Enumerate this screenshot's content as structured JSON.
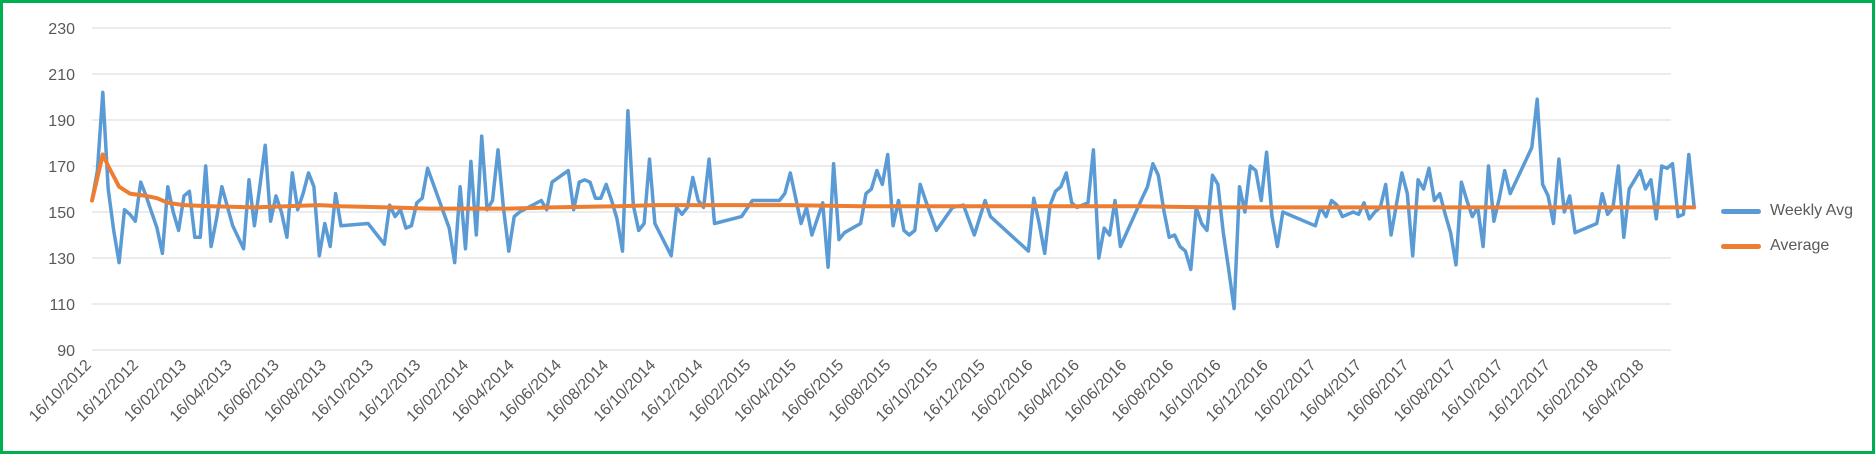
{
  "chart_data": {
    "type": "line",
    "title": "",
    "xlabel": "",
    "ylabel": "",
    "ylim": [
      90,
      230
    ],
    "y_ticks": [
      90,
      110,
      130,
      150,
      170,
      190,
      210,
      230
    ],
    "x_range": [
      "2012-10-16",
      "2018-05-20"
    ],
    "x_tick_labels": [
      "16/10/2012",
      "16/12/2012",
      "16/02/2013",
      "16/04/2013",
      "16/06/2013",
      "16/08/2013",
      "16/10/2013",
      "16/12/2013",
      "16/02/2014",
      "16/04/2014",
      "16/06/2014",
      "16/08/2014",
      "16/10/2014",
      "16/12/2014",
      "16/02/2015",
      "16/04/2015",
      "16/06/2015",
      "16/08/2015",
      "16/10/2015",
      "16/12/2015",
      "16/02/2016",
      "16/04/2016",
      "16/06/2016",
      "16/08/2016",
      "16/10/2016",
      "16/12/2016",
      "16/02/2017",
      "16/04/2017",
      "16/06/2017",
      "16/08/2017",
      "16/10/2017",
      "16/12/2017",
      "16/02/2018",
      "16/04/2018"
    ],
    "grid": true,
    "legend_position": "right",
    "series": [
      {
        "name": "Weekly Avg",
        "color": "#5b9bd5",
        "points": [
          [
            "2012-10-16",
            155
          ],
          [
            "2012-10-23",
            168
          ],
          [
            "2012-10-30",
            202
          ],
          [
            "2012-11-06",
            160
          ],
          [
            "2012-11-13",
            142
          ],
          [
            "2012-11-20",
            128
          ],
          [
            "2012-11-27",
            151
          ],
          [
            "2012-12-04",
            149
          ],
          [
            "2012-12-11",
            146
          ],
          [
            "2012-12-18",
            163
          ],
          [
            "2012-12-25",
            157
          ],
          [
            "2013-01-01",
            150
          ],
          [
            "2013-01-08",
            143
          ],
          [
            "2013-01-15",
            132
          ],
          [
            "2013-01-22",
            161
          ],
          [
            "2013-01-29",
            150
          ],
          [
            "2013-02-05",
            142
          ],
          [
            "2013-02-12",
            157
          ],
          [
            "2013-02-19",
            159
          ],
          [
            "2013-02-26",
            139
          ],
          [
            "2013-03-05",
            139
          ],
          [
            "2013-03-12",
            170
          ],
          [
            "2013-03-19",
            135
          ],
          [
            "2013-03-26",
            147
          ],
          [
            "2013-04-02",
            161
          ],
          [
            "2013-04-16",
            144
          ],
          [
            "2013-04-30",
            134
          ],
          [
            "2013-05-07",
            164
          ],
          [
            "2013-05-14",
            144
          ],
          [
            "2013-05-21",
            161
          ],
          [
            "2013-05-28",
            179
          ],
          [
            "2013-06-04",
            146
          ],
          [
            "2013-06-11",
            157
          ],
          [
            "2013-06-18",
            150
          ],
          [
            "2013-06-25",
            139
          ],
          [
            "2013-07-02",
            167
          ],
          [
            "2013-07-09",
            151
          ],
          [
            "2013-07-16",
            158
          ],
          [
            "2013-07-23",
            167
          ],
          [
            "2013-07-30",
            161
          ],
          [
            "2013-08-06",
            131
          ],
          [
            "2013-08-13",
            145
          ],
          [
            "2013-08-20",
            135
          ],
          [
            "2013-08-27",
            158
          ],
          [
            "2013-09-03",
            144
          ],
          [
            "2013-10-08",
            145
          ],
          [
            "2013-10-29",
            136
          ],
          [
            "2013-11-05",
            153
          ],
          [
            "2013-11-12",
            148
          ],
          [
            "2013-11-19",
            151
          ],
          [
            "2013-11-26",
            143
          ],
          [
            "2013-12-03",
            144
          ],
          [
            "2013-12-10",
            154
          ],
          [
            "2013-12-17",
            156
          ],
          [
            "2013-12-24",
            169
          ],
          [
            "2014-01-21",
            143
          ],
          [
            "2014-01-28",
            128
          ],
          [
            "2014-02-04",
            161
          ],
          [
            "2014-02-11",
            134
          ],
          [
            "2014-02-18",
            172
          ],
          [
            "2014-02-25",
            140
          ],
          [
            "2014-03-04",
            183
          ],
          [
            "2014-03-11",
            151
          ],
          [
            "2014-03-18",
            155
          ],
          [
            "2014-03-25",
            177
          ],
          [
            "2014-04-01",
            152
          ],
          [
            "2014-04-08",
            133
          ],
          [
            "2014-04-15",
            148
          ],
          [
            "2014-04-22",
            150
          ],
          [
            "2014-05-20",
            155
          ],
          [
            "2014-05-27",
            151
          ],
          [
            "2014-06-03",
            163
          ],
          [
            "2014-06-24",
            168
          ],
          [
            "2014-07-01",
            151
          ],
          [
            "2014-07-08",
            163
          ],
          [
            "2014-07-15",
            164
          ],
          [
            "2014-07-22",
            163
          ],
          [
            "2014-07-29",
            156
          ],
          [
            "2014-08-05",
            156
          ],
          [
            "2014-08-12",
            162
          ],
          [
            "2014-08-19",
            155
          ],
          [
            "2014-08-26",
            147
          ],
          [
            "2014-09-02",
            133
          ],
          [
            "2014-09-09",
            194
          ],
          [
            "2014-09-16",
            153
          ],
          [
            "2014-09-23",
            142
          ],
          [
            "2014-09-30",
            145
          ],
          [
            "2014-10-07",
            173
          ],
          [
            "2014-10-14",
            145
          ],
          [
            "2014-11-04",
            131
          ],
          [
            "2014-11-11",
            152
          ],
          [
            "2014-11-18",
            149
          ],
          [
            "2014-11-25",
            152
          ],
          [
            "2014-12-02",
            165
          ],
          [
            "2014-12-09",
            155
          ],
          [
            "2014-12-16",
            152
          ],
          [
            "2014-12-23",
            173
          ],
          [
            "2014-12-30",
            145
          ],
          [
            "2015-02-03",
            148
          ],
          [
            "2015-02-17",
            155
          ],
          [
            "2015-03-24",
            155
          ],
          [
            "2015-03-31",
            158
          ],
          [
            "2015-04-07",
            167
          ],
          [
            "2015-04-21",
            145
          ],
          [
            "2015-04-28",
            152
          ],
          [
            "2015-05-05",
            140
          ],
          [
            "2015-05-19",
            154
          ],
          [
            "2015-05-26",
            126
          ],
          [
            "2015-06-02",
            171
          ],
          [
            "2015-06-09",
            138
          ],
          [
            "2015-06-16",
            141
          ],
          [
            "2015-07-07",
            145
          ],
          [
            "2015-07-14",
            158
          ],
          [
            "2015-07-21",
            160
          ],
          [
            "2015-07-28",
            168
          ],
          [
            "2015-08-04",
            162
          ],
          [
            "2015-08-11",
            175
          ],
          [
            "2015-08-18",
            144
          ],
          [
            "2015-08-25",
            155
          ],
          [
            "2015-09-01",
            142
          ],
          [
            "2015-09-08",
            140
          ],
          [
            "2015-09-15",
            142
          ],
          [
            "2015-09-22",
            162
          ],
          [
            "2015-09-29",
            155
          ],
          [
            "2015-10-13",
            142
          ],
          [
            "2015-11-03",
            152
          ],
          [
            "2015-11-17",
            153
          ],
          [
            "2015-12-01",
            140
          ],
          [
            "2015-12-15",
            155
          ],
          [
            "2015-12-22",
            148
          ],
          [
            "2016-02-09",
            133
          ],
          [
            "2016-02-16",
            156
          ],
          [
            "2016-02-23",
            145
          ],
          [
            "2016-03-01",
            132
          ],
          [
            "2016-03-08",
            153
          ],
          [
            "2016-03-15",
            159
          ],
          [
            "2016-03-22",
            161
          ],
          [
            "2016-03-29",
            167
          ],
          [
            "2016-04-05",
            154
          ],
          [
            "2016-04-12",
            152
          ],
          [
            "2016-04-26",
            154
          ],
          [
            "2016-05-03",
            177
          ],
          [
            "2016-05-10",
            130
          ],
          [
            "2016-05-17",
            143
          ],
          [
            "2016-05-24",
            140
          ],
          [
            "2016-05-31",
            155
          ],
          [
            "2016-06-07",
            135
          ],
          [
            "2016-07-05",
            156
          ],
          [
            "2016-07-12",
            161
          ],
          [
            "2016-07-19",
            171
          ],
          [
            "2016-07-26",
            166
          ],
          [
            "2016-08-02",
            151
          ],
          [
            "2016-08-09",
            139
          ],
          [
            "2016-08-16",
            140
          ],
          [
            "2016-08-23",
            135
          ],
          [
            "2016-08-30",
            133
          ],
          [
            "2016-09-06",
            125
          ],
          [
            "2016-09-13",
            152
          ],
          [
            "2016-09-20",
            145
          ],
          [
            "2016-09-27",
            142
          ],
          [
            "2016-10-04",
            166
          ],
          [
            "2016-10-11",
            162
          ],
          [
            "2016-10-18",
            141
          ],
          [
            "2016-10-25",
            125
          ],
          [
            "2016-11-01",
            108
          ],
          [
            "2016-11-08",
            161
          ],
          [
            "2016-11-15",
            150
          ],
          [
            "2016-11-22",
            170
          ],
          [
            "2016-11-29",
            168
          ],
          [
            "2016-12-06",
            155
          ],
          [
            "2016-12-13",
            176
          ],
          [
            "2016-12-20",
            148
          ],
          [
            "2016-12-27",
            135
          ],
          [
            "2017-01-03",
            150
          ],
          [
            "2017-02-14",
            144
          ],
          [
            "2017-02-21",
            152
          ],
          [
            "2017-02-28",
            148
          ],
          [
            "2017-03-07",
            155
          ],
          [
            "2017-03-14",
            153
          ],
          [
            "2017-03-21",
            148
          ],
          [
            "2017-04-04",
            150
          ],
          [
            "2017-04-11",
            149
          ],
          [
            "2017-04-18",
            154
          ],
          [
            "2017-04-25",
            147
          ],
          [
            "2017-05-02",
            150
          ],
          [
            "2017-05-09",
            152
          ],
          [
            "2017-05-16",
            162
          ],
          [
            "2017-05-23",
            140
          ],
          [
            "2017-06-06",
            167
          ],
          [
            "2017-06-13",
            158
          ],
          [
            "2017-06-20",
            131
          ],
          [
            "2017-06-27",
            164
          ],
          [
            "2017-07-04",
            160
          ],
          [
            "2017-07-11",
            169
          ],
          [
            "2017-07-18",
            155
          ],
          [
            "2017-07-25",
            158
          ],
          [
            "2017-08-01",
            149
          ],
          [
            "2017-08-08",
            141
          ],
          [
            "2017-08-15",
            127
          ],
          [
            "2017-08-22",
            163
          ],
          [
            "2017-08-29",
            155
          ],
          [
            "2017-09-05",
            148
          ],
          [
            "2017-09-12",
            152
          ],
          [
            "2017-09-19",
            135
          ],
          [
            "2017-09-26",
            170
          ],
          [
            "2017-10-03",
            146
          ],
          [
            "2017-10-10",
            156
          ],
          [
            "2017-10-17",
            168
          ],
          [
            "2017-10-24",
            158
          ],
          [
            "2017-11-21",
            178
          ],
          [
            "2017-11-28",
            199
          ],
          [
            "2017-12-05",
            162
          ],
          [
            "2017-12-12",
            157
          ],
          [
            "2017-12-19",
            145
          ],
          [
            "2017-12-26",
            173
          ],
          [
            "2018-01-02",
            150
          ],
          [
            "2018-01-09",
            157
          ],
          [
            "2018-01-16",
            141
          ],
          [
            "2018-02-13",
            145
          ],
          [
            "2018-02-20",
            158
          ],
          [
            "2018-02-27",
            149
          ],
          [
            "2018-03-06",
            152
          ],
          [
            "2018-03-13",
            170
          ],
          [
            "2018-03-20",
            139
          ],
          [
            "2018-03-27",
            160
          ],
          [
            "2018-04-03",
            164
          ],
          [
            "2018-04-10",
            168
          ],
          [
            "2018-04-17",
            160
          ],
          [
            "2018-04-24",
            164
          ],
          [
            "2018-05-01",
            147
          ],
          [
            "2018-05-08",
            170
          ],
          [
            "2018-05-15",
            169
          ],
          [
            "2018-05-22",
            171
          ],
          [
            "2018-05-29",
            148
          ],
          [
            "2018-06-05",
            149
          ],
          [
            "2018-06-12",
            175
          ],
          [
            "2018-06-19",
            152
          ]
        ]
      },
      {
        "name": "Average",
        "color": "#ed7d31",
        "points": [
          [
            "2012-10-16",
            155
          ],
          [
            "2012-10-30",
            175
          ],
          [
            "2012-11-06",
            170
          ],
          [
            "2012-11-20",
            161
          ],
          [
            "2012-12-04",
            158
          ],
          [
            "2012-12-25",
            157
          ],
          [
            "2013-01-08",
            156
          ],
          [
            "2013-01-22",
            154
          ],
          [
            "2013-02-12",
            153
          ],
          [
            "2013-03-19",
            152.5
          ],
          [
            "2013-05-14",
            152
          ],
          [
            "2013-08-06",
            153
          ],
          [
            "2013-09-03",
            152.5
          ],
          [
            "2013-11-05",
            152
          ],
          [
            "2013-12-24",
            151.5
          ],
          [
            "2014-02-11",
            151.5
          ],
          [
            "2014-04-08",
            151.5
          ],
          [
            "2014-06-03",
            152
          ],
          [
            "2014-08-26",
            152.5
          ],
          [
            "2014-10-14",
            153
          ],
          [
            "2015-01-06",
            153
          ],
          [
            "2015-04-07",
            153
          ],
          [
            "2015-07-07",
            152.5
          ],
          [
            "2015-10-06",
            152.5
          ],
          [
            "2016-01-05",
            152.5
          ],
          [
            "2016-04-05",
            152.5
          ],
          [
            "2016-07-05",
            152.5
          ],
          [
            "2016-10-04",
            152
          ],
          [
            "2017-01-03",
            152
          ],
          [
            "2017-04-04",
            152
          ],
          [
            "2017-07-04",
            152
          ],
          [
            "2017-10-03",
            152
          ],
          [
            "2018-01-02",
            152
          ],
          [
            "2018-04-03",
            152
          ],
          [
            "2018-06-19",
            152
          ]
        ]
      }
    ]
  }
}
